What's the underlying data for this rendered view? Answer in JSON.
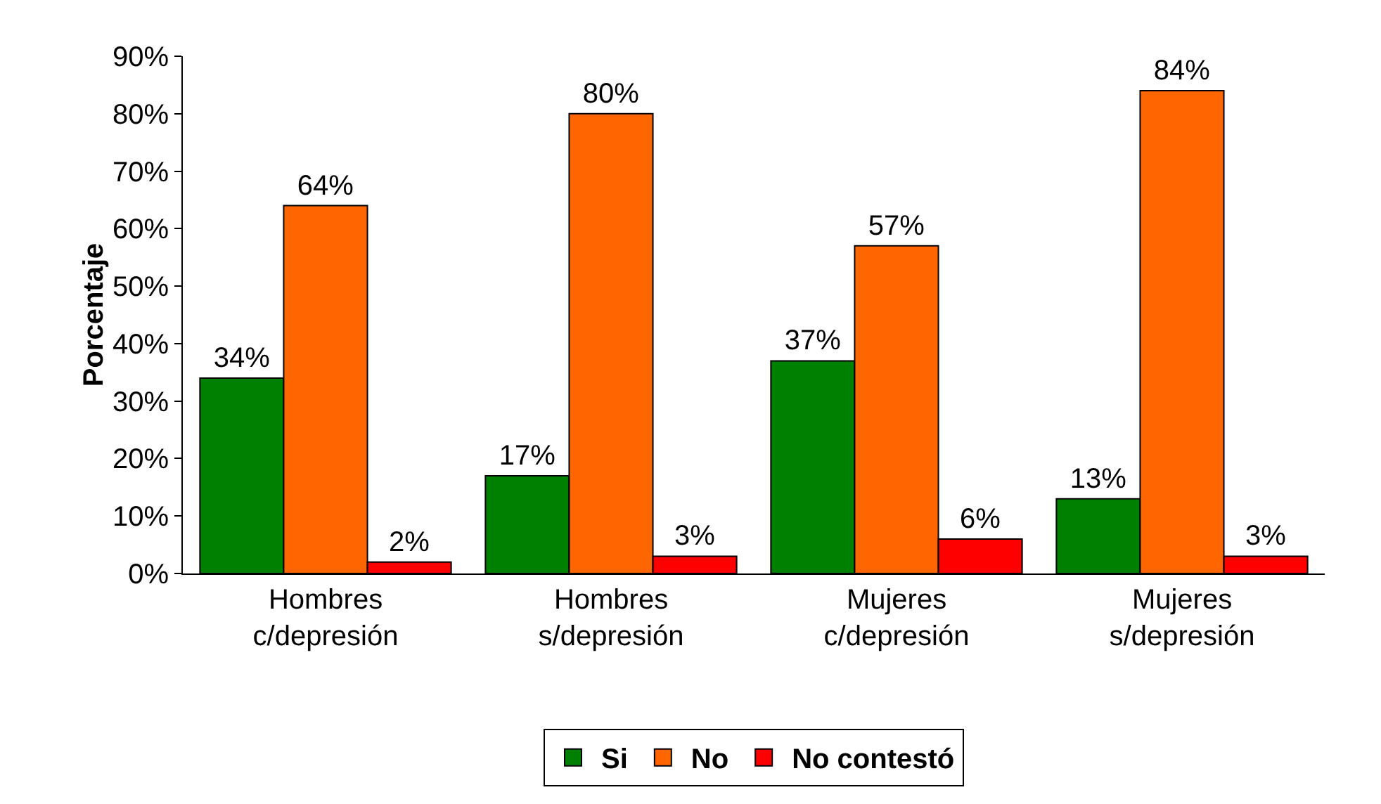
{
  "chart_data": {
    "type": "bar",
    "ylabel": "Porcentaje",
    "categories": [
      "Hombres c/depresión",
      "Hombres s/depresión",
      "Mujeres c/depresión",
      "Mujeres s/depresión"
    ],
    "series": [
      {
        "name": "Si",
        "color": "#008000",
        "values": [
          34,
          17,
          37,
          13
        ],
        "value_labels": [
          "34%",
          "17%",
          "37%",
          "13%"
        ]
      },
      {
        "name": "No",
        "color": "#ff6600",
        "values": [
          64,
          80,
          57,
          84
        ],
        "value_labels": [
          "64%",
          "80%",
          "57%",
          "84%"
        ]
      },
      {
        "name": "No contestó",
        "color": "#ff0000",
        "values": [
          2,
          3,
          6,
          3
        ],
        "value_labels": [
          "2%",
          "3%",
          "6%",
          "3%"
        ]
      }
    ],
    "ylim": [
      0,
      90
    ],
    "yticks": [
      {
        "value": 0,
        "label": "0%"
      },
      {
        "value": 10,
        "label": "10%"
      },
      {
        "value": 20,
        "label": "20%"
      },
      {
        "value": 30,
        "label": "30%"
      },
      {
        "value": 40,
        "label": "40%"
      },
      {
        "value": 50,
        "label": "50%"
      },
      {
        "value": 60,
        "label": "60%"
      },
      {
        "value": 70,
        "label": "70%"
      },
      {
        "value": 80,
        "label": "80%"
      },
      {
        "value": 90,
        "label": "90%"
      }
    ],
    "grid": false,
    "legend": "bottom"
  }
}
